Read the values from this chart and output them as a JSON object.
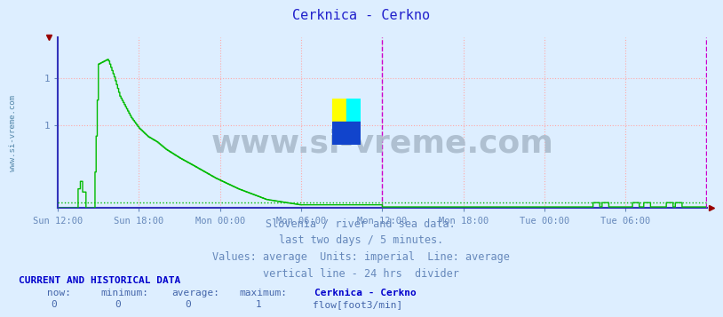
{
  "title": "Cerknica - Cerkno",
  "title_color": "#2222cc",
  "bg_color": "#ddeeff",
  "plot_bg_color": "#ddeeff",
  "axis_color": "#3333bb",
  "grid_color": "#ffaaaa",
  "grid_style": ":",
  "flow_color": "#00bb00",
  "flow_avg_color": "#00bb00",
  "vline_color": "#cc00cc",
  "vline_style": "--",
  "x_tick_labels": [
    "Sun 12:00",
    "Sun 18:00",
    "Mon 00:00",
    "Mon 06:00",
    "Mon 12:00",
    "Mon 18:00",
    "Tue 00:00",
    "Tue 06:00"
  ],
  "x_tick_positions": [
    0,
    72,
    144,
    216,
    288,
    360,
    432,
    504
  ],
  "total_points": 576,
  "ylim": [
    0,
    1.6
  ],
  "y_tick_vals": [
    0.78,
    1.22
  ],
  "y_tick_labels": [
    "1",
    "1"
  ],
  "avg_val": 0.055,
  "subtitle_lines": [
    "Slovenia / river and sea data.",
    "last two days / 5 minutes.",
    "Values: average  Units: imperial  Line: average",
    "vertical line - 24 hrs  divider"
  ],
  "subtitle_color": "#6688bb",
  "subtitle_fontsize": 9,
  "footer_bold": "CURRENT AND HISTORICAL DATA",
  "footer_bold_color": "#0000cc",
  "footer_header": "now:   minimum:    average:    maximum:    Cerknica - Cerkno",
  "footer_vals": "  0          0           0            1",
  "footer_color": "#4466aa",
  "legend_label": "flow[foot3/min]",
  "legend_color": "#00bb00",
  "watermark": "www.si-vreme.com",
  "watermark_color": "#aabbcc",
  "side_label": "www.si-vreme.com",
  "side_label_color": "#5588aa"
}
